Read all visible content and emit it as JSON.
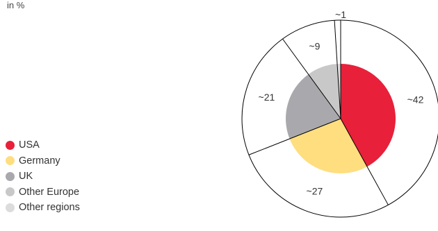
{
  "chart_data": {
    "type": "pie",
    "unit_label": "in %",
    "categories": [
      "USA",
      "Germany",
      "UK",
      "Other Europe",
      "Other regions"
    ],
    "values": [
      42,
      27,
      21,
      9,
      1
    ],
    "value_labels": [
      "~42",
      "~27",
      "~21",
      "~9",
      "~1"
    ],
    "colors": [
      "#E8203A",
      "#FFDE80",
      "#A9A9AD",
      "#C8C8C8",
      "#DCDCDC"
    ],
    "legend_placement": "bottom-left"
  }
}
